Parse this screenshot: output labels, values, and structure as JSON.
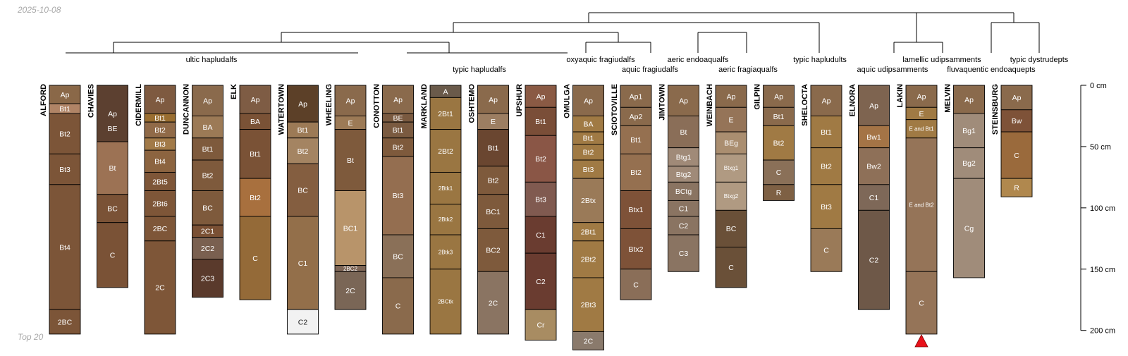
{
  "date_label": "2025-10-08",
  "footer_label": "Top 20",
  "depth_axis": {
    "unit": "cm",
    "max_depth": 205,
    "ticks": [
      {
        "depth": 0,
        "label": "0 cm"
      },
      {
        "depth": 50,
        "label": "50 cm"
      },
      {
        "depth": 100,
        "label": "100 cm"
      },
      {
        "depth": 150,
        "label": "150 cm"
      },
      {
        "depth": 200,
        "label": "200 cm"
      }
    ]
  },
  "colors": {
    "text_light": "#ffffff",
    "text_dark": "#222222",
    "line": "#000000",
    "marker": "#e8111a"
  },
  "groups": [
    {
      "label": "ultic hapludalfs"
    },
    {
      "label": "typic hapludalfs"
    },
    {
      "label": "oxyaquic fragiudalfs"
    },
    {
      "label": "aquic fragiudalfs"
    },
    {
      "label": "aeric endoaqualfs"
    },
    {
      "label": "aeric fragiaqualfs"
    },
    {
      "label": "typic hapludults"
    },
    {
      "label": "lamellic udipsamments"
    },
    {
      "label": "aquic udipsamments"
    },
    {
      "label": "typic dystrudepts"
    },
    {
      "label": "fluvaquentic endoaquepts"
    }
  ],
  "profiles": [
    {
      "name": "ALFORD",
      "horizons": [
        {
          "name": "Ap",
          "top": 0,
          "bottom": 15,
          "color": "#8a6848"
        },
        {
          "name": "Bt1",
          "top": 15,
          "bottom": 23,
          "color": "#b08466"
        },
        {
          "name": "Bt2",
          "top": 23,
          "bottom": 56,
          "color": "#7c5538"
        },
        {
          "name": "Bt3",
          "top": 56,
          "bottom": 81,
          "color": "#7c5538"
        },
        {
          "name": "Bt4",
          "top": 81,
          "bottom": 183,
          "color": "#7c5538"
        },
        {
          "name": "2BC",
          "top": 183,
          "bottom": 203,
          "color": "#7c5538"
        }
      ]
    },
    {
      "name": "CHAVIES",
      "horizons": [
        {
          "name": "Ap",
          "top": 0,
          "bottom": 46,
          "color": "#5c4030"
        },
        {
          "name": "BE",
          "top": 46,
          "bottom": 46,
          "color": "#8a6446"
        },
        {
          "name": "Bt",
          "top": 46,
          "bottom": 89,
          "color": "#9c7254"
        },
        {
          "name": "BC",
          "top": 89,
          "bottom": 112,
          "color": "#7a5236"
        },
        {
          "name": "C",
          "top": 112,
          "bottom": 165,
          "color": "#7a5236"
        }
      ]
    },
    {
      "name": "CIDERMILL",
      "horizons": [
        {
          "name": "Ap",
          "top": 0,
          "bottom": 23,
          "color": "#7e5a40"
        },
        {
          "name": "Bt1",
          "top": 23,
          "bottom": 30,
          "color": "#9a6e30"
        },
        {
          "name": "Bt2",
          "top": 30,
          "bottom": 43,
          "color": "#906a48"
        },
        {
          "name": "Bt3",
          "top": 43,
          "bottom": 53,
          "color": "#a27a48"
        },
        {
          "name": "Bt4",
          "top": 53,
          "bottom": 71,
          "color": "#8c6440"
        },
        {
          "name": "2Bt5",
          "top": 71,
          "bottom": 86,
          "color": "#7e5638"
        },
        {
          "name": "2Bt6",
          "top": 86,
          "bottom": 107,
          "color": "#7e5638"
        },
        {
          "name": "2BC",
          "top": 107,
          "bottom": 127,
          "color": "#7e5638"
        },
        {
          "name": "2C",
          "top": 127,
          "bottom": 203,
          "color": "#7e5638"
        }
      ]
    },
    {
      "name": "DUNCANNON",
      "horizons": [
        {
          "name": "Ap",
          "top": 0,
          "bottom": 25,
          "color": "#8a6a4c"
        },
        {
          "name": "BA",
          "top": 25,
          "bottom": 43,
          "color": "#9c7a56"
        },
        {
          "name": "Bt1",
          "top": 43,
          "bottom": 61,
          "color": "#7e5a3c"
        },
        {
          "name": "Bt2",
          "top": 61,
          "bottom": 86,
          "color": "#7e5a3c"
        },
        {
          "name": "BC",
          "top": 86,
          "bottom": 114,
          "color": "#7e5a3c"
        },
        {
          "name": "2C1",
          "top": 114,
          "bottom": 124,
          "color": "#7a5034"
        },
        {
          "name": "2C2",
          "top": 124,
          "bottom": 142,
          "color": "#7a6050"
        },
        {
          "name": "2C3",
          "top": 142,
          "bottom": 173,
          "color": "#5a3a2c"
        }
      ]
    },
    {
      "name": "ELK",
      "horizons": [
        {
          "name": "Ap",
          "top": 0,
          "bottom": 23,
          "color": "#7e5c44"
        },
        {
          "name": "BA",
          "top": 23,
          "bottom": 36,
          "color": "#7a5236"
        },
        {
          "name": "Bt1",
          "top": 36,
          "bottom": 76,
          "color": "#7a5236"
        },
        {
          "name": "Bt2",
          "top": 76,
          "bottom": 107,
          "color": "#a8703e"
        },
        {
          "name": "C",
          "top": 107,
          "bottom": 175,
          "color": "#946a38"
        }
      ]
    },
    {
      "name": "WATERTOWN",
      "horizons": [
        {
          "name": "Ap",
          "top": 0,
          "bottom": 30,
          "color": "#5c4028"
        },
        {
          "name": "Bt1",
          "top": 30,
          "bottom": 43,
          "color": "#9c7a56"
        },
        {
          "name": "Bt2",
          "top": 43,
          "bottom": 64,
          "color": "#a48462"
        },
        {
          "name": "BC",
          "top": 64,
          "bottom": 107,
          "color": "#845e40"
        },
        {
          "name": "C1",
          "top": 107,
          "bottom": 183,
          "color": "#936f4a"
        },
        {
          "name": "C2",
          "top": 183,
          "bottom": 203,
          "color": "#f2f2f2"
        }
      ]
    },
    {
      "name": "WHEELING",
      "horizons": [
        {
          "name": "Ap",
          "top": 0,
          "bottom": 25,
          "color": "#8a6a4c"
        },
        {
          "name": "E",
          "top": 25,
          "bottom": 36,
          "color": "#9c7a56"
        },
        {
          "name": "Bt",
          "top": 36,
          "bottom": 86,
          "color": "#7e5a3c"
        },
        {
          "name": "BC1",
          "top": 86,
          "bottom": 147,
          "color": "#b8946a"
        },
        {
          "name": "2BC2",
          "top": 147,
          "bottom": 152,
          "color": "#7e6656"
        },
        {
          "name": "2C",
          "top": 152,
          "bottom": 183,
          "color": "#7a6656"
        }
      ]
    },
    {
      "name": "CONOTTON",
      "horizons": [
        {
          "name": "Ap",
          "top": 0,
          "bottom": 23,
          "color": "#8a6a4c"
        },
        {
          "name": "BE",
          "top": 23,
          "bottom": 30,
          "color": "#7a5a40"
        },
        {
          "name": "Bt1",
          "top": 30,
          "bottom": 43,
          "color": "#7a5a40"
        },
        {
          "name": "Bt2",
          "top": 43,
          "bottom": 58,
          "color": "#7e5a3c"
        },
        {
          "name": "Bt3",
          "top": 58,
          "bottom": 122,
          "color": "#946e50"
        },
        {
          "name": "BC",
          "top": 122,
          "bottom": 157,
          "color": "#8a7058"
        },
        {
          "name": "C",
          "top": 157,
          "bottom": 203,
          "color": "#8a6a4c"
        }
      ]
    },
    {
      "name": "MARKLAND",
      "horizons": [
        {
          "name": "A",
          "top": 0,
          "bottom": 10,
          "color": "#6a5a4a"
        },
        {
          "name": "2Bt1",
          "top": 10,
          "bottom": 36,
          "color": "#9a7642"
        },
        {
          "name": "2Bt2",
          "top": 36,
          "bottom": 71,
          "color": "#9a7642"
        },
        {
          "name": "2Btk1",
          "top": 71,
          "bottom": 97,
          "color": "#9a7642"
        },
        {
          "name": "2Btk2",
          "top": 97,
          "bottom": 122,
          "color": "#9a7642"
        },
        {
          "name": "2Btk3",
          "top": 122,
          "bottom": 150,
          "color": "#9a7642"
        },
        {
          "name": "2BCtk",
          "top": 150,
          "bottom": 203,
          "color": "#9a7642"
        }
      ]
    },
    {
      "name": "OSHTEMO",
      "horizons": [
        {
          "name": "Ap",
          "top": 0,
          "bottom": 23,
          "color": "#8a6a4c"
        },
        {
          "name": "E",
          "top": 23,
          "bottom": 36,
          "color": "#9c7e62"
        },
        {
          "name": "Bt1",
          "top": 36,
          "bottom": 66,
          "color": "#6a4630"
        },
        {
          "name": "Bt2",
          "top": 66,
          "bottom": 89,
          "color": "#7e5a3c"
        },
        {
          "name": "BC1",
          "top": 89,
          "bottom": 117,
          "color": "#7e5a3c"
        },
        {
          "name": "BC2",
          "top": 117,
          "bottom": 152,
          "color": "#7e5a3c"
        },
        {
          "name": "2C",
          "top": 152,
          "bottom": 203,
          "color": "#8a7462"
        }
      ]
    },
    {
      "name": "UPSHUR",
      "horizons": [
        {
          "name": "Ap",
          "top": 0,
          "bottom": 18,
          "color": "#8a5a44"
        },
        {
          "name": "Bt1",
          "top": 18,
          "bottom": 41,
          "color": "#7a4e38"
        },
        {
          "name": "Bt2",
          "top": 41,
          "bottom": 79,
          "color": "#8a5646"
        },
        {
          "name": "Bt3",
          "top": 79,
          "bottom": 107,
          "color": "#805a50"
        },
        {
          "name": "C1",
          "top": 107,
          "bottom": 137,
          "color": "#6a3c30"
        },
        {
          "name": "C2",
          "top": 137,
          "bottom": 183,
          "color": "#6a3c30"
        },
        {
          "name": "Cr",
          "top": 183,
          "bottom": 208,
          "color": "#a88c62"
        }
      ]
    },
    {
      "name": "OMULGA",
      "horizons": [
        {
          "name": "Ap",
          "top": 0,
          "bottom": 25,
          "color": "#8a6a4c"
        },
        {
          "name": "BA",
          "top": 25,
          "bottom": 38,
          "color": "#a07a44"
        },
        {
          "name": "Bt1",
          "top": 38,
          "bottom": 48,
          "color": "#a07a44"
        },
        {
          "name": "Bt2",
          "top": 48,
          "bottom": 61,
          "color": "#a07a44"
        },
        {
          "name": "Bt3",
          "top": 61,
          "bottom": 76,
          "color": "#a07a44"
        },
        {
          "name": "2Btx",
          "top": 76,
          "bottom": 112,
          "color": "#9a7a58"
        },
        {
          "name": "2Bt1",
          "top": 112,
          "bottom": 127,
          "color": "#a07a44"
        },
        {
          "name": "2Bt2",
          "top": 127,
          "bottom": 157,
          "color": "#a07a44"
        },
        {
          "name": "2Bt3",
          "top": 157,
          "bottom": 201,
          "color": "#a07a44"
        },
        {
          "name": "2C",
          "top": 201,
          "bottom": 216,
          "color": "#8a7a6c"
        }
      ]
    },
    {
      "name": "SCIOTOVILLE",
      "horizons": [
        {
          "name": "Ap1",
          "top": 0,
          "bottom": 18,
          "color": "#8a6a4c"
        },
        {
          "name": "Ap2",
          "top": 18,
          "bottom": 33,
          "color": "#8a6a4c"
        },
        {
          "name": "Bt1",
          "top": 33,
          "bottom": 56,
          "color": "#957050"
        },
        {
          "name": "Bt2",
          "top": 56,
          "bottom": 86,
          "color": "#957050"
        },
        {
          "name": "Btx1",
          "top": 86,
          "bottom": 117,
          "color": "#7e5238"
        },
        {
          "name": "Btx2",
          "top": 117,
          "bottom": 150,
          "color": "#7e5238"
        },
        {
          "name": "C",
          "top": 150,
          "bottom": 175,
          "color": "#8a6e58"
        }
      ]
    },
    {
      "name": "JIMTOWN",
      "horizons": [
        {
          "name": "Ap",
          "top": 0,
          "bottom": 25,
          "color": "#8a6a4c"
        },
        {
          "name": "Bt",
          "top": 25,
          "bottom": 51,
          "color": "#8a6e58"
        },
        {
          "name": "Btg1",
          "top": 51,
          "bottom": 66,
          "color": "#a08a78"
        },
        {
          "name": "Btg2",
          "top": 66,
          "bottom": 79,
          "color": "#a08a78"
        },
        {
          "name": "BCtg",
          "top": 79,
          "bottom": 94,
          "color": "#8a7462"
        },
        {
          "name": "C1",
          "top": 94,
          "bottom": 107,
          "color": "#8a7462"
        },
        {
          "name": "C2",
          "top": 107,
          "bottom": 122,
          "color": "#8a7462"
        },
        {
          "name": "C3",
          "top": 122,
          "bottom": 152,
          "color": "#8a7462"
        }
      ]
    },
    {
      "name": "WEINBACH",
      "horizons": [
        {
          "name": "Ap",
          "top": 0,
          "bottom": 18,
          "color": "#8a6a4c"
        },
        {
          "name": "E",
          "top": 18,
          "bottom": 38,
          "color": "#957458"
        },
        {
          "name": "BEg",
          "top": 38,
          "bottom": 56,
          "color": "#aa8e70"
        },
        {
          "name": "Btxg1",
          "top": 56,
          "bottom": 79,
          "color": "#b09a82"
        },
        {
          "name": "Btxg2",
          "top": 79,
          "bottom": 102,
          "color": "#b09a82"
        },
        {
          "name": "BC",
          "top": 102,
          "bottom": 132,
          "color": "#6a5038"
        },
        {
          "name": "C",
          "top": 132,
          "bottom": 165,
          "color": "#6a5038"
        }
      ]
    },
    {
      "name": "GILPIN",
      "horizons": [
        {
          "name": "Ap",
          "top": 0,
          "bottom": 18,
          "color": "#8a6a4c"
        },
        {
          "name": "Bt1",
          "top": 18,
          "bottom": 33,
          "color": "#8a6a4c"
        },
        {
          "name": "Bt2",
          "top": 33,
          "bottom": 61,
          "color": "#a07a44"
        },
        {
          "name": "C",
          "top": 61,
          "bottom": 81,
          "color": "#8a7058"
        },
        {
          "name": "R",
          "top": 81,
          "bottom": 94,
          "color": "#7e6044"
        }
      ]
    },
    {
      "name": "SHELOCTA",
      "horizons": [
        {
          "name": "Ap",
          "top": 0,
          "bottom": 25,
          "color": "#8a6a4c"
        },
        {
          "name": "Bt1",
          "top": 25,
          "bottom": 51,
          "color": "#a07a44"
        },
        {
          "name": "Bt2",
          "top": 51,
          "bottom": 81,
          "color": "#a07a44"
        },
        {
          "name": "Bt3",
          "top": 81,
          "bottom": 117,
          "color": "#a07a44"
        },
        {
          "name": "C",
          "top": 117,
          "bottom": 152,
          "color": "#9a7a58"
        }
      ]
    },
    {
      "name": "ELNORA",
      "horizons": [
        {
          "name": "Ap",
          "top": 0,
          "bottom": 33,
          "color": "#7e6450"
        },
        {
          "name": "Bw1",
          "top": 33,
          "bottom": 51,
          "color": "#a47446"
        },
        {
          "name": "Bw2",
          "top": 51,
          "bottom": 81,
          "color": "#8e7058"
        },
        {
          "name": "C1",
          "top": 81,
          "bottom": 102,
          "color": "#7e6858"
        },
        {
          "name": "C2",
          "top": 102,
          "bottom": 183,
          "color": "#6e5848"
        }
      ]
    },
    {
      "name": "LAKIN",
      "horizons": [
        {
          "name": "Ap",
          "top": 0,
          "bottom": 18,
          "color": "#8a6a4c"
        },
        {
          "name": "E",
          "top": 18,
          "bottom": 28,
          "color": "#a07a44"
        },
        {
          "name": "E and Bt1",
          "top": 28,
          "bottom": 43,
          "color": "#a07a44"
        },
        {
          "name": "E and Bt2",
          "top": 43,
          "bottom": 152,
          "color": "#957458"
        },
        {
          "name": "C",
          "top": 152,
          "bottom": 203,
          "color": "#957458"
        }
      ]
    },
    {
      "name": "MELVIN",
      "horizons": [
        {
          "name": "Ap",
          "top": 0,
          "bottom": 23,
          "color": "#8a6a4c"
        },
        {
          "name": "Bg1",
          "top": 23,
          "bottom": 51,
          "color": "#a08c7a"
        },
        {
          "name": "Bg2",
          "top": 51,
          "bottom": 76,
          "color": "#a08c7a"
        },
        {
          "name": "Cg",
          "top": 76,
          "bottom": 157,
          "color": "#a08c7a"
        }
      ]
    },
    {
      "name": "STEINSBURG",
      "horizons": [
        {
          "name": "Ap",
          "top": 0,
          "bottom": 20,
          "color": "#8a6a4c"
        },
        {
          "name": "Bw",
          "top": 20,
          "bottom": 38,
          "color": "#7e5238"
        },
        {
          "name": "C",
          "top": 38,
          "bottom": 76,
          "color": "#9a6a3c"
        },
        {
          "name": "R",
          "top": 76,
          "bottom": 91,
          "color": "#b0884e"
        }
      ]
    }
  ]
}
